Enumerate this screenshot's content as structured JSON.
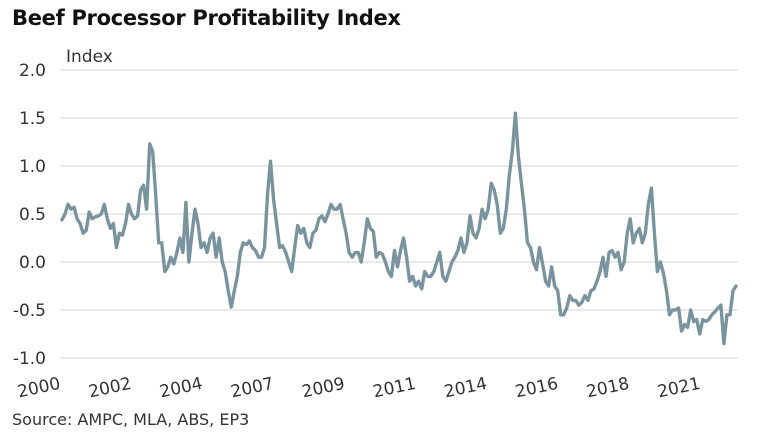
{
  "title": "Beef Processor Profitability Index",
  "source": "Source: AMPC, MLA, ABS, EP3",
  "chart_data": {
    "type": "line",
    "title": "Beef Processor Profitability Index",
    "ylabel": "Index",
    "xlabel": "",
    "ylim": [
      -1.0,
      2.0
    ],
    "yticks": [
      "2.0",
      "1.5",
      "1.0",
      "0.5",
      "0.0",
      "-0.5",
      "-1.0"
    ],
    "xticks": [
      "2000",
      "2002",
      "2004",
      "2007",
      "2009",
      "2011",
      "2014",
      "2016",
      "2018",
      "2021"
    ],
    "grid": "horizontal",
    "color": "#7a949f",
    "series": [
      {
        "values": [
          0.44,
          0.5,
          0.6,
          0.55,
          0.57,
          0.45,
          0.4,
          0.3,
          0.33,
          0.52,
          0.45,
          0.47,
          0.48,
          0.5,
          0.6,
          0.45,
          0.35,
          0.4,
          0.15,
          0.3,
          0.28,
          0.4,
          0.6,
          0.5,
          0.45,
          0.48,
          0.75,
          0.8,
          0.55,
          1.23,
          1.15,
          0.7,
          0.2,
          0.2,
          -0.1,
          -0.05,
          0.05,
          -0.02,
          0.1,
          0.25,
          0.1,
          0.62,
          0.0,
          0.3,
          0.55,
          0.4,
          0.15,
          0.2,
          0.1,
          0.25,
          0.3,
          0.05,
          0.25,
          0.0,
          -0.1,
          -0.3,
          -0.47,
          -0.3,
          -0.15,
          0.1,
          0.2,
          0.18,
          0.22,
          0.15,
          0.12,
          0.05,
          0.05,
          0.15,
          0.7,
          1.05,
          0.65,
          0.4,
          0.15,
          0.17,
          0.1,
          0.0,
          -0.1,
          0.15,
          0.38,
          0.3,
          0.35,
          0.2,
          0.15,
          0.3,
          0.33,
          0.45,
          0.48,
          0.42,
          0.5,
          0.6,
          0.55,
          0.55,
          0.6,
          0.45,
          0.3,
          0.1,
          0.05,
          0.1,
          0.1,
          0.0,
          0.2,
          0.45,
          0.35,
          0.32,
          0.05,
          0.1,
          0.08,
          0.0,
          -0.1,
          -0.15,
          0.12,
          -0.05,
          0.12,
          0.25,
          0.05,
          -0.2,
          -0.15,
          -0.25,
          -0.2,
          -0.28,
          -0.1,
          -0.15,
          -0.15,
          -0.1,
          0.0,
          0.1,
          -0.15,
          -0.2,
          -0.1,
          0.0,
          0.05,
          0.12,
          0.25,
          0.1,
          0.2,
          0.48,
          0.3,
          0.25,
          0.35,
          0.55,
          0.45,
          0.55,
          0.82,
          0.75,
          0.6,
          0.3,
          0.35,
          0.55,
          0.9,
          1.15,
          1.55,
          1.1,
          0.82,
          0.55,
          0.2,
          0.15,
          0.0,
          -0.08,
          0.15,
          -0.02,
          -0.2,
          -0.25,
          -0.05,
          -0.25,
          -0.3,
          -0.55,
          -0.55,
          -0.48,
          -0.35,
          -0.4,
          -0.4,
          -0.45,
          -0.42,
          -0.35,
          -0.4,
          -0.3,
          -0.28,
          -0.2,
          -0.1,
          0.05,
          -0.15,
          0.1,
          0.12,
          0.05,
          0.1,
          -0.08,
          0.0,
          0.3,
          0.45,
          0.2,
          0.3,
          0.35,
          0.2,
          0.3,
          0.6,
          0.77,
          0.3,
          -0.1,
          0.0,
          -0.12,
          -0.3,
          -0.55,
          -0.5,
          -0.5,
          -0.48,
          -0.72,
          -0.65,
          -0.68,
          -0.5,
          -0.62,
          -0.6,
          -0.75,
          -0.6,
          -0.62,
          -0.6,
          -0.55,
          -0.52,
          -0.48,
          -0.45,
          -0.85,
          -0.55,
          -0.55,
          -0.3,
          -0.25
        ]
      }
    ]
  }
}
